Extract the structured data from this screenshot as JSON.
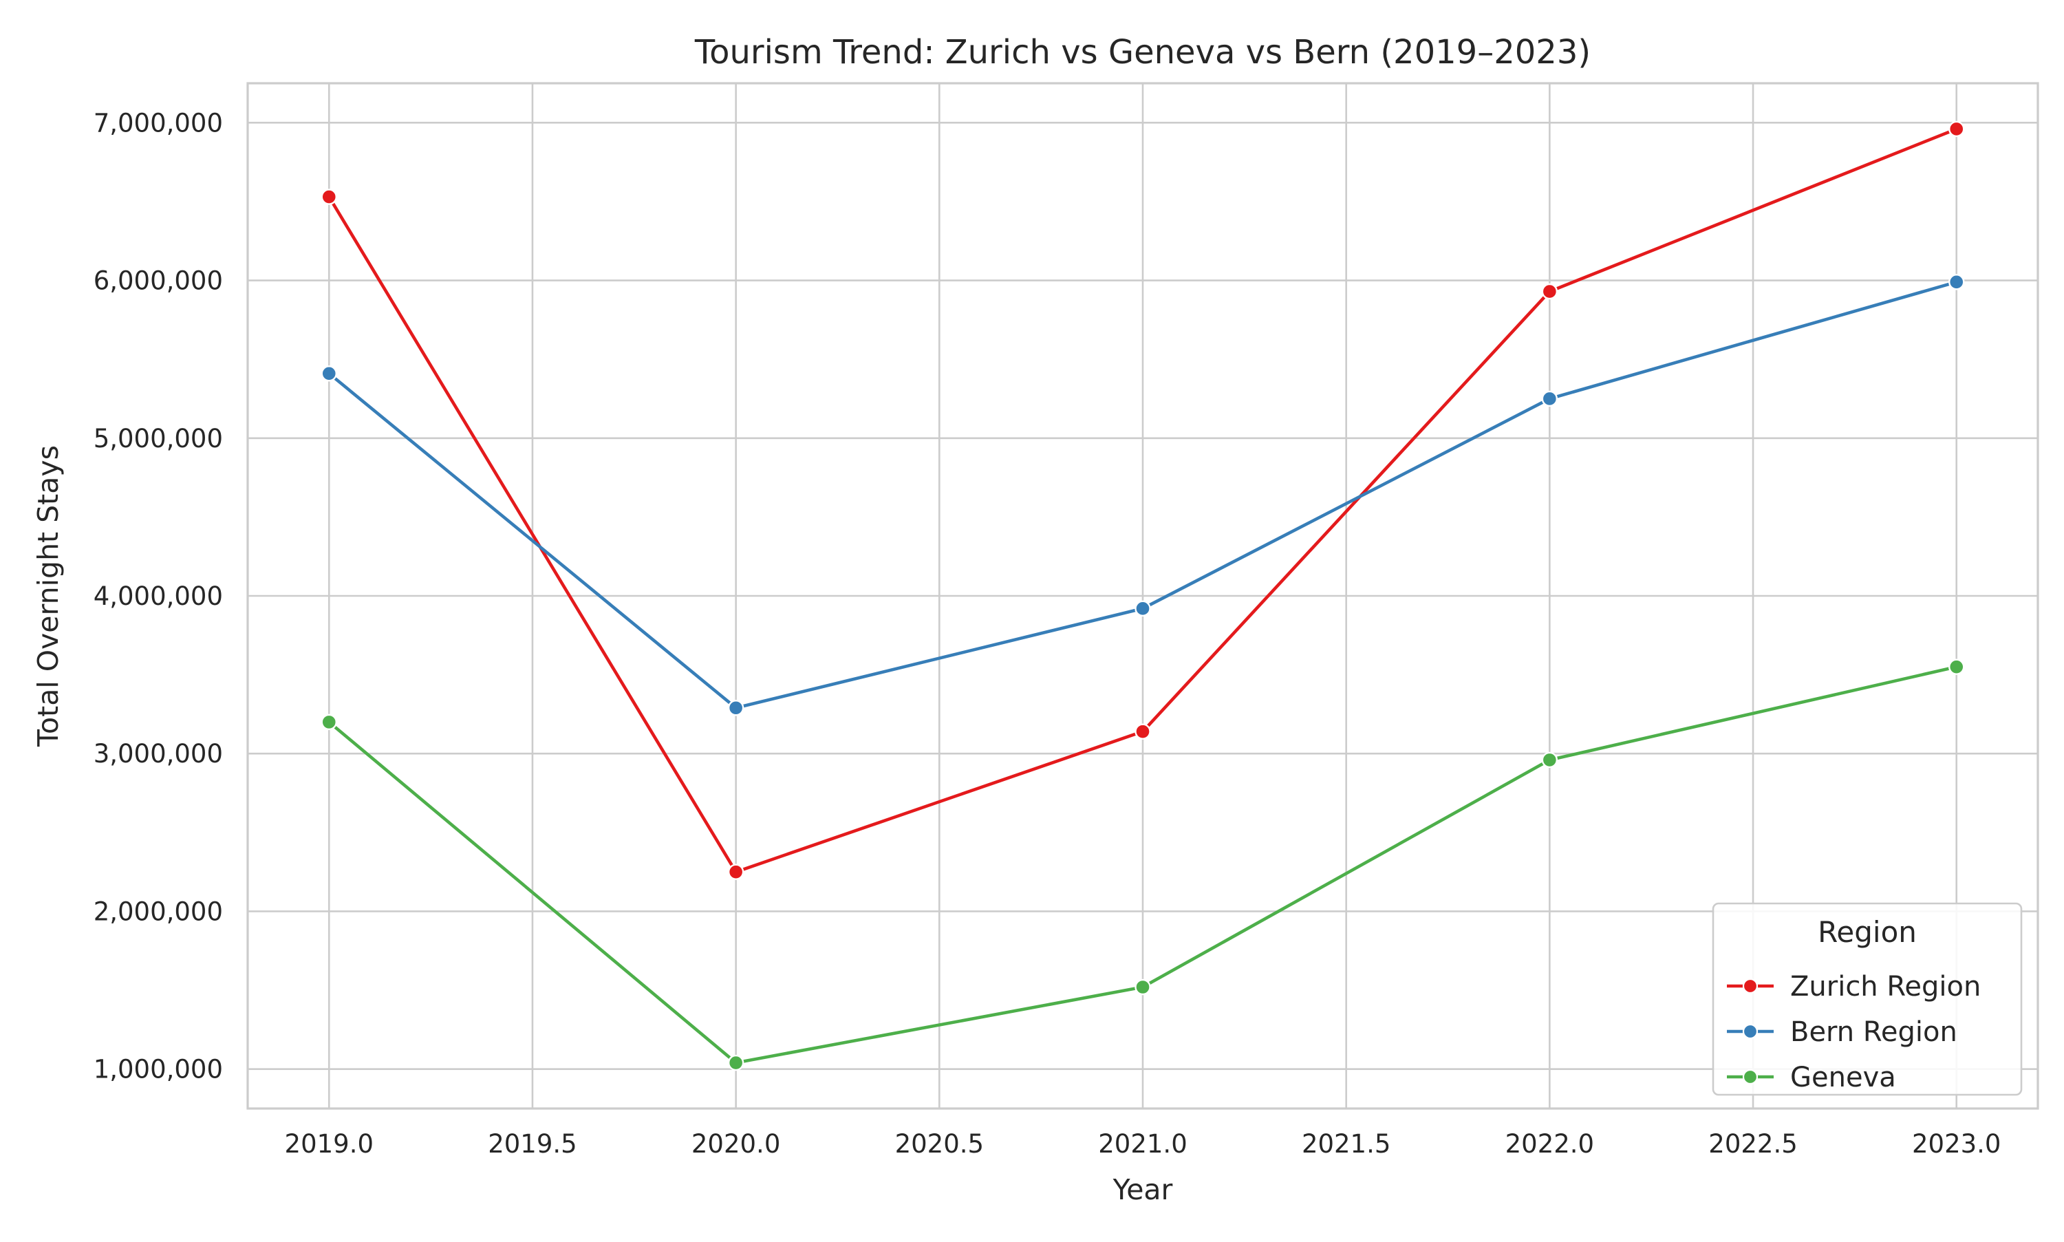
{
  "chart_data": {
    "type": "line",
    "title": "Tourism Trend: Zurich vs Geneva vs Bern (2019–2023)",
    "xlabel": "Year",
    "ylabel": "Total Overnight Stays",
    "x": [
      2019,
      2020,
      2021,
      2022,
      2023
    ],
    "xlim": [
      2018.8,
      2023.2
    ],
    "ylim": [
      750000,
      7250000
    ],
    "x_ticks": [
      2019.0,
      2019.5,
      2020.0,
      2020.5,
      2021.0,
      2021.5,
      2022.0,
      2022.5,
      2023.0
    ],
    "x_tick_labels": [
      "2019.0",
      "2019.5",
      "2020.0",
      "2020.5",
      "2021.0",
      "2021.5",
      "2022.0",
      "2022.5",
      "2023.0"
    ],
    "y_ticks": [
      1000000,
      2000000,
      3000000,
      4000000,
      5000000,
      6000000,
      7000000
    ],
    "y_tick_labels": [
      "1,000,000",
      "2,000,000",
      "3,000,000",
      "4,000,000",
      "5,000,000",
      "6,000,000",
      "7,000,000"
    ],
    "grid": true,
    "legend": {
      "title": "Region",
      "position": "lower-right"
    },
    "series": [
      {
        "name": "Zurich Region",
        "color": "#e41a1c",
        "values": [
          6530000,
          2250000,
          3140000,
          5930000,
          6960000
        ]
      },
      {
        "name": "Bern Region",
        "color": "#377eb8",
        "values": [
          5410000,
          3290000,
          3920000,
          5250000,
          5990000
        ]
      },
      {
        "name": "Geneva",
        "color": "#4daf4a",
        "values": [
          3200000,
          1040000,
          1520000,
          2960000,
          3550000
        ]
      }
    ]
  }
}
